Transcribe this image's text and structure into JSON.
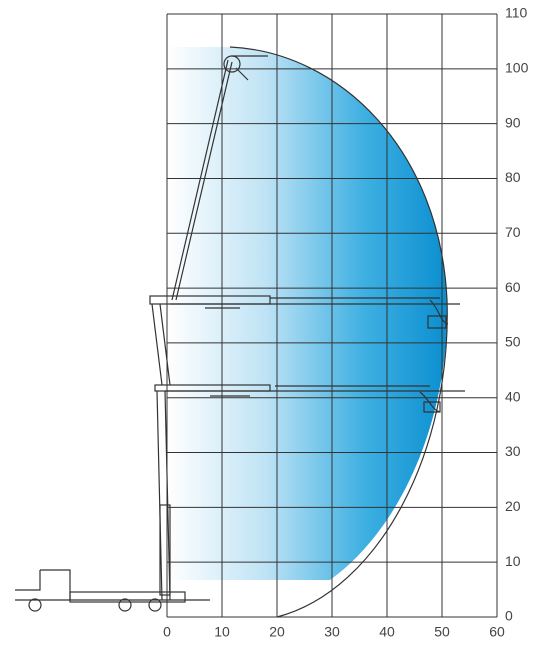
{
  "chart_data": {
    "type": "reach",
    "xlim": [
      0,
      60
    ],
    "ylim": [
      0,
      110
    ],
    "xticks": [
      0,
      10,
      20,
      30,
      40,
      50,
      60
    ],
    "yticks": [
      0,
      10,
      20,
      30,
      40,
      50,
      60,
      70,
      80,
      90,
      100,
      110
    ],
    "grid": true
  }
}
